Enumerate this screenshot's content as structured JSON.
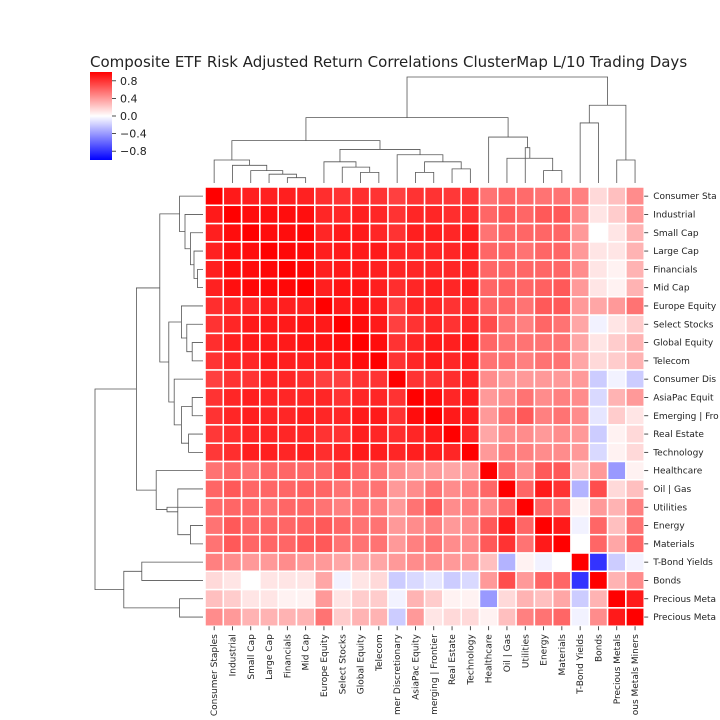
{
  "chart_data": {
    "type": "heatmap",
    "title": "Composite ETF Risk Adjusted Return Correlations ClusterMap L/10 Trading Days",
    "colormap": "bwr",
    "vmin": -1.0,
    "vmax": 1.0,
    "colorbar_ticks": [
      0.8,
      0.4,
      0.0,
      -0.4,
      -0.8
    ],
    "colorbar_tick_labels": [
      "0.8",
      "0.4",
      "0.0",
      "−0.4",
      "−0.8"
    ],
    "row_labels": [
      "Consumer Staples",
      "Industrial",
      "Small Cap",
      "Large Cap",
      "Financials",
      "Mid Cap",
      "Europe Equity",
      "Select Stocks",
      "Global Equity",
      "Telecom",
      "Consumer Discretionary",
      "AsiaPac Equity",
      "Emerging | Frontier",
      "Real Estate",
      "Technology",
      "Healthcare",
      "Oil | Gas",
      "Utilities",
      "Energy",
      "Materials",
      "T-Bond Yields",
      "Bonds",
      "Precious Metals",
      "Precious Metals Miners"
    ],
    "row_labels_visible": [
      "Consumer Sta",
      "Industrial",
      "Small Cap",
      "Large Cap",
      "Financials",
      "Mid Cap",
      "Europe Equity",
      "Select Stocks",
      "Global Equity",
      "Telecom",
      "Consumer Dis",
      "AsiaPac Equit",
      "Emerging | Fro",
      "Real Estate",
      "Technology",
      "Healthcare",
      "Oil | Gas",
      "Utilities",
      "Energy",
      "Materials",
      "T-Bond Yields",
      "Bonds",
      "Precious Meta",
      "Precious Meta"
    ],
    "col_labels_visible": [
      "Consumer Staples",
      "Industrial",
      "Small Cap",
      "Large Cap",
      "Financials",
      "Mid Cap",
      "Europe Equity",
      "Select Stocks",
      "Global Equity",
      "Telecom",
      "mer Discretionary",
      "AsiaPac Equity",
      "merging | Frontier",
      "Real Estate",
      "Technology",
      "Healthcare",
      "Oil | Gas",
      "Utilities",
      "Energy",
      "Materials",
      "T-Bond Yields",
      "Bonds",
      "Precious Metals",
      "ous Metals Miners"
    ],
    "matrix": [
      [
        1.0,
        0.9,
        0.88,
        0.87,
        0.88,
        0.87,
        0.82,
        0.8,
        0.82,
        0.8,
        0.75,
        0.8,
        0.8,
        0.78,
        0.78,
        0.55,
        0.6,
        0.58,
        0.55,
        0.55,
        0.5,
        0.15,
        0.25,
        0.45
      ],
      [
        0.9,
        1.0,
        0.95,
        0.94,
        0.95,
        0.94,
        0.85,
        0.85,
        0.88,
        0.85,
        0.8,
        0.85,
        0.85,
        0.82,
        0.82,
        0.6,
        0.65,
        0.6,
        0.65,
        0.65,
        0.45,
        0.1,
        0.2,
        0.4
      ],
      [
        0.88,
        0.95,
        1.0,
        0.95,
        0.95,
        0.97,
        0.85,
        0.9,
        0.9,
        0.85,
        0.8,
        0.88,
        0.88,
        0.85,
        0.88,
        0.55,
        0.6,
        0.6,
        0.6,
        0.6,
        0.4,
        0.0,
        0.1,
        0.3
      ],
      [
        0.87,
        0.94,
        0.95,
        1.0,
        0.97,
        0.96,
        0.88,
        0.9,
        0.9,
        0.9,
        0.85,
        0.85,
        0.85,
        0.85,
        0.88,
        0.6,
        0.6,
        0.55,
        0.6,
        0.6,
        0.4,
        0.1,
        0.1,
        0.3
      ],
      [
        0.88,
        0.95,
        0.95,
        0.97,
        1.0,
        0.97,
        0.88,
        0.9,
        0.9,
        0.88,
        0.85,
        0.85,
        0.85,
        0.85,
        0.85,
        0.6,
        0.6,
        0.6,
        0.6,
        0.6,
        0.45,
        0.1,
        0.05,
        0.3
      ],
      [
        0.87,
        0.94,
        0.97,
        0.96,
        0.97,
        1.0,
        0.88,
        0.92,
        0.92,
        0.88,
        0.82,
        0.85,
        0.88,
        0.85,
        0.88,
        0.6,
        0.62,
        0.6,
        0.62,
        0.65,
        0.4,
        0.1,
        0.05,
        0.3
      ],
      [
        0.82,
        0.85,
        0.85,
        0.88,
        0.88,
        0.88,
        1.0,
        0.9,
        0.92,
        0.88,
        0.75,
        0.85,
        0.85,
        0.8,
        0.82,
        0.6,
        0.6,
        0.55,
        0.65,
        0.65,
        0.4,
        0.35,
        0.4,
        0.55
      ],
      [
        0.8,
        0.85,
        0.9,
        0.9,
        0.9,
        0.92,
        0.9,
        1.0,
        0.95,
        0.9,
        0.75,
        0.8,
        0.85,
        0.8,
        0.85,
        0.7,
        0.55,
        0.5,
        0.6,
        0.55,
        0.35,
        -0.05,
        0.1,
        0.2
      ],
      [
        0.82,
        0.88,
        0.9,
        0.9,
        0.9,
        0.92,
        0.92,
        0.95,
        1.0,
        0.95,
        0.8,
        0.85,
        0.9,
        0.88,
        0.9,
        0.6,
        0.55,
        0.55,
        0.55,
        0.55,
        0.35,
        0.1,
        0.2,
        0.3
      ],
      [
        0.8,
        0.85,
        0.85,
        0.9,
        0.88,
        0.88,
        0.88,
        0.9,
        0.95,
        1.0,
        0.8,
        0.85,
        0.9,
        0.85,
        0.88,
        0.55,
        0.55,
        0.5,
        0.55,
        0.55,
        0.35,
        0.15,
        0.2,
        0.3
      ],
      [
        0.75,
        0.8,
        0.8,
        0.85,
        0.85,
        0.82,
        0.75,
        0.75,
        0.8,
        0.8,
        1.0,
        0.8,
        0.8,
        0.82,
        0.85,
        0.45,
        0.4,
        0.4,
        0.4,
        0.4,
        0.4,
        -0.2,
        -0.05,
        -0.2
      ],
      [
        0.8,
        0.85,
        0.88,
        0.85,
        0.85,
        0.85,
        0.85,
        0.8,
        0.85,
        0.85,
        0.8,
        1.0,
        0.95,
        0.85,
        0.88,
        0.4,
        0.45,
        0.55,
        0.45,
        0.5,
        0.45,
        -0.15,
        0.3,
        0.4
      ],
      [
        0.8,
        0.85,
        0.88,
        0.85,
        0.85,
        0.88,
        0.85,
        0.85,
        0.9,
        0.9,
        0.8,
        0.95,
        1.0,
        0.9,
        0.88,
        0.4,
        0.55,
        0.65,
        0.5,
        0.55,
        0.45,
        -0.1,
        0.2,
        0.1
      ],
      [
        0.78,
        0.82,
        0.85,
        0.85,
        0.85,
        0.85,
        0.8,
        0.8,
        0.88,
        0.85,
        0.82,
        0.85,
        0.9,
        1.0,
        0.85,
        0.35,
        0.45,
        0.45,
        0.4,
        0.45,
        0.4,
        -0.2,
        0.05,
        0.15
      ],
      [
        0.78,
        0.82,
        0.88,
        0.88,
        0.85,
        0.88,
        0.82,
        0.85,
        0.9,
        0.88,
        0.85,
        0.88,
        0.88,
        0.85,
        1.0,
        0.4,
        0.5,
        0.5,
        0.45,
        0.45,
        0.4,
        -0.15,
        0.05,
        0.15
      ],
      [
        0.55,
        0.6,
        0.55,
        0.6,
        0.6,
        0.6,
        0.6,
        0.7,
        0.6,
        0.55,
        0.45,
        0.4,
        0.4,
        0.35,
        0.4,
        1.0,
        0.6,
        0.45,
        0.65,
        0.65,
        0.25,
        0.4,
        -0.4,
        0.05
      ],
      [
        0.6,
        0.65,
        0.6,
        0.6,
        0.6,
        0.62,
        0.6,
        0.55,
        0.55,
        0.55,
        0.4,
        0.45,
        0.55,
        0.45,
        0.5,
        0.6,
        1.0,
        0.6,
        0.9,
        0.8,
        -0.3,
        0.7,
        0.15,
        0.25
      ],
      [
        0.58,
        0.6,
        0.6,
        0.55,
        0.6,
        0.6,
        0.55,
        0.5,
        0.55,
        0.5,
        0.4,
        0.55,
        0.65,
        0.45,
        0.5,
        0.45,
        0.6,
        1.0,
        0.6,
        0.55,
        0.05,
        0.4,
        0.3,
        0.5
      ],
      [
        0.55,
        0.65,
        0.6,
        0.6,
        0.6,
        0.62,
        0.65,
        0.6,
        0.55,
        0.55,
        0.4,
        0.45,
        0.5,
        0.4,
        0.45,
        0.65,
        0.9,
        0.6,
        1.0,
        0.9,
        -0.05,
        0.6,
        0.25,
        0.55
      ],
      [
        0.55,
        0.65,
        0.6,
        0.6,
        0.6,
        0.65,
        0.65,
        0.55,
        0.55,
        0.55,
        0.4,
        0.5,
        0.55,
        0.45,
        0.45,
        0.65,
        0.8,
        0.55,
        0.9,
        1.0,
        0.0,
        0.6,
        0.35,
        0.6
      ],
      [
        0.5,
        0.45,
        0.4,
        0.4,
        0.45,
        0.4,
        0.4,
        0.35,
        0.35,
        0.35,
        0.4,
        0.45,
        0.45,
        0.4,
        0.4,
        0.25,
        -0.3,
        0.05,
        -0.05,
        0.0,
        1.0,
        -0.8,
        -0.2,
        -0.05
      ],
      [
        0.15,
        0.1,
        0.0,
        0.1,
        0.1,
        0.1,
        0.35,
        -0.05,
        0.1,
        0.15,
        -0.2,
        -0.15,
        -0.1,
        -0.2,
        -0.15,
        0.4,
        0.7,
        0.4,
        0.6,
        0.6,
        -0.8,
        1.0,
        0.3,
        0.45
      ],
      [
        0.25,
        0.2,
        0.1,
        0.1,
        0.05,
        0.05,
        0.4,
        0.1,
        0.2,
        0.2,
        -0.05,
        0.3,
        0.2,
        0.05,
        0.05,
        -0.4,
        0.15,
        0.3,
        0.25,
        0.35,
        -0.2,
        0.3,
        1.0,
        0.9
      ],
      [
        0.45,
        0.4,
        0.3,
        0.3,
        0.3,
        0.3,
        0.55,
        0.2,
        0.3,
        0.3,
        -0.2,
        0.4,
        0.1,
        0.15,
        0.15,
        0.05,
        0.25,
        0.5,
        0.55,
        0.6,
        -0.05,
        0.45,
        0.9,
        1.0
      ]
    ]
  }
}
